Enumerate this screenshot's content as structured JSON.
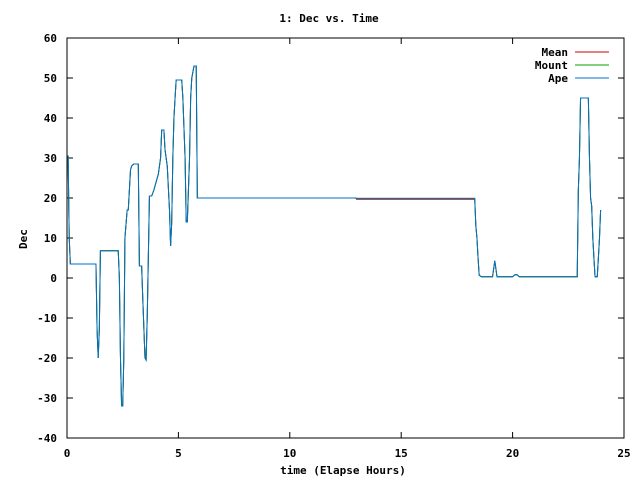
{
  "chart_data": {
    "type": "line",
    "title": "1: Dec vs. Time",
    "xlabel": "time (Elapse Hours)",
    "ylabel": "Dec",
    "xlim": [
      0,
      25
    ],
    "ylim": [
      -40,
      60
    ],
    "xticks": [
      "0",
      "5",
      "10",
      "15",
      "20",
      "25"
    ],
    "yticks": [
      "-40",
      "-30",
      "-20",
      "-10",
      "0",
      "10",
      "20",
      "30",
      "40",
      "50",
      "60"
    ],
    "grid": false,
    "legend_position": "top-right",
    "series": [
      {
        "name": "Mean",
        "color": "#cc0000",
        "points": [
          [
            0.0,
            30.5
          ],
          [
            0.05,
            30.5
          ],
          [
            0.1,
            10
          ],
          [
            0.15,
            3.5
          ],
          [
            1.2,
            3.5
          ],
          [
            1.3,
            3.5
          ],
          [
            1.35,
            -13
          ],
          [
            1.4,
            -20
          ],
          [
            1.45,
            -13
          ],
          [
            1.5,
            6.8
          ],
          [
            2.3,
            6.8
          ],
          [
            2.35,
            0
          ],
          [
            2.4,
            -20
          ],
          [
            2.45,
            -32
          ],
          [
            2.5,
            -32
          ],
          [
            2.55,
            -20
          ],
          [
            2.6,
            10
          ],
          [
            2.7,
            17
          ],
          [
            2.75,
            17
          ],
          [
            2.8,
            22
          ],
          [
            2.85,
            27
          ],
          [
            2.9,
            28
          ],
          [
            3.0,
            28.5
          ],
          [
            3.2,
            28.5
          ],
          [
            3.25,
            3
          ],
          [
            3.35,
            3
          ],
          [
            3.4,
            -5
          ],
          [
            3.5,
            -20
          ],
          [
            3.55,
            -20.5
          ],
          [
            3.6,
            -10
          ],
          [
            3.65,
            5
          ],
          [
            3.7,
            20.5
          ],
          [
            3.8,
            20.5
          ],
          [
            3.9,
            22
          ],
          [
            4.0,
            24
          ],
          [
            4.1,
            26
          ],
          [
            4.2,
            30
          ],
          [
            4.25,
            37
          ],
          [
            4.35,
            37
          ],
          [
            4.4,
            32
          ],
          [
            4.5,
            28
          ],
          [
            4.6,
            17
          ],
          [
            4.65,
            8
          ],
          [
            4.7,
            14
          ],
          [
            4.75,
            30
          ],
          [
            4.8,
            40
          ],
          [
            4.85,
            45
          ],
          [
            4.9,
            49.5
          ],
          [
            5.15,
            49.5
          ],
          [
            5.2,
            45
          ],
          [
            5.3,
            30
          ],
          [
            5.35,
            14
          ],
          [
            5.4,
            14
          ],
          [
            5.5,
            30
          ],
          [
            5.55,
            45
          ],
          [
            5.6,
            50
          ],
          [
            5.7,
            53
          ],
          [
            5.8,
            53
          ],
          [
            5.85,
            20
          ],
          [
            12.95,
            20
          ],
          [
            13.0,
            19.7
          ],
          [
            18.3,
            19.7
          ],
          [
            18.35,
            13
          ],
          [
            18.4,
            10
          ],
          [
            18.45,
            5
          ],
          [
            18.5,
            0.7
          ],
          [
            18.6,
            0.3
          ],
          [
            19.1,
            0.3
          ],
          [
            19.2,
            4.3
          ],
          [
            19.3,
            0.3
          ],
          [
            20.0,
            0.3
          ],
          [
            20.1,
            0.8
          ],
          [
            20.2,
            0.8
          ],
          [
            20.3,
            0.3
          ],
          [
            22.9,
            0.3
          ],
          [
            22.95,
            22
          ],
          [
            23.0,
            30
          ],
          [
            23.05,
            45
          ],
          [
            23.4,
            45
          ],
          [
            23.45,
            30
          ],
          [
            23.5,
            20
          ],
          [
            23.55,
            18
          ],
          [
            23.6,
            10
          ],
          [
            23.65,
            5
          ],
          [
            23.7,
            0.3
          ],
          [
            23.8,
            0.3
          ],
          [
            23.85,
            5
          ],
          [
            23.9,
            10
          ],
          [
            23.95,
            17
          ]
        ]
      },
      {
        "name": "Mount",
        "color": "#00a000",
        "points": [
          [
            0.0,
            30.5
          ],
          [
            0.05,
            30.5
          ],
          [
            0.1,
            10
          ],
          [
            0.15,
            3.5
          ],
          [
            1.2,
            3.5
          ],
          [
            1.3,
            3.5
          ],
          [
            1.35,
            -13
          ],
          [
            1.4,
            -20
          ],
          [
            1.45,
            -13
          ],
          [
            1.5,
            6.8
          ],
          [
            2.3,
            6.8
          ],
          [
            2.35,
            0
          ],
          [
            2.4,
            -20
          ],
          [
            2.45,
            -32
          ],
          [
            2.5,
            -32
          ],
          [
            2.55,
            -20
          ],
          [
            2.6,
            10
          ],
          [
            2.7,
            17
          ],
          [
            2.75,
            17
          ],
          [
            2.8,
            22
          ],
          [
            2.85,
            27
          ],
          [
            2.9,
            28
          ],
          [
            3.0,
            28.5
          ],
          [
            3.2,
            28.5
          ],
          [
            3.25,
            3
          ],
          [
            3.35,
            3
          ],
          [
            3.4,
            -5
          ],
          [
            3.5,
            -20
          ],
          [
            3.55,
            -20.5
          ],
          [
            3.6,
            -10
          ],
          [
            3.65,
            5
          ],
          [
            3.7,
            20.5
          ],
          [
            3.8,
            20.5
          ],
          [
            3.9,
            22
          ],
          [
            4.0,
            24
          ],
          [
            4.1,
            26
          ],
          [
            4.2,
            30
          ],
          [
            4.25,
            37
          ],
          [
            4.35,
            37
          ],
          [
            4.4,
            32
          ],
          [
            4.5,
            28
          ],
          [
            4.6,
            17
          ],
          [
            4.65,
            8
          ],
          [
            4.7,
            14
          ],
          [
            4.75,
            30
          ],
          [
            4.8,
            40
          ],
          [
            4.85,
            45
          ],
          [
            4.9,
            49.5
          ],
          [
            5.15,
            49.5
          ],
          [
            5.2,
            45
          ],
          [
            5.3,
            30
          ],
          [
            5.35,
            14
          ],
          [
            5.4,
            14
          ],
          [
            5.5,
            30
          ],
          [
            5.55,
            45
          ],
          [
            5.6,
            50
          ],
          [
            5.7,
            53
          ],
          [
            5.8,
            53
          ],
          [
            5.85,
            20
          ],
          [
            12.95,
            20
          ],
          [
            13.0,
            19.9
          ],
          [
            18.3,
            19.9
          ],
          [
            18.35,
            13
          ],
          [
            18.4,
            10
          ],
          [
            18.45,
            5
          ],
          [
            18.5,
            0.7
          ],
          [
            18.6,
            0.3
          ],
          [
            19.1,
            0.3
          ],
          [
            19.2,
            4.3
          ],
          [
            19.3,
            0.3
          ],
          [
            20.0,
            0.3
          ],
          [
            20.1,
            0.8
          ],
          [
            20.2,
            0.8
          ],
          [
            20.3,
            0.3
          ],
          [
            22.9,
            0.3
          ],
          [
            22.95,
            22
          ],
          [
            23.0,
            30
          ],
          [
            23.05,
            45
          ],
          [
            23.4,
            45
          ],
          [
            23.45,
            30
          ],
          [
            23.5,
            20
          ],
          [
            23.55,
            18
          ],
          [
            23.6,
            10
          ],
          [
            23.65,
            5
          ],
          [
            23.7,
            0.3
          ],
          [
            23.8,
            0.3
          ],
          [
            23.85,
            5
          ],
          [
            23.9,
            10
          ],
          [
            23.95,
            17
          ]
        ]
      },
      {
        "name": "Ape",
        "color": "#0070c8",
        "points": [
          [
            0.0,
            30.5
          ],
          [
            0.05,
            30.5
          ],
          [
            0.1,
            10
          ],
          [
            0.15,
            3.5
          ],
          [
            1.2,
            3.5
          ],
          [
            1.3,
            3.5
          ],
          [
            1.35,
            -13
          ],
          [
            1.4,
            -20
          ],
          [
            1.45,
            -13
          ],
          [
            1.5,
            6.8
          ],
          [
            2.3,
            6.8
          ],
          [
            2.35,
            0
          ],
          [
            2.4,
            -20
          ],
          [
            2.45,
            -32
          ],
          [
            2.5,
            -32
          ],
          [
            2.55,
            -20
          ],
          [
            2.6,
            10
          ],
          [
            2.7,
            17
          ],
          [
            2.75,
            17
          ],
          [
            2.8,
            22
          ],
          [
            2.85,
            27
          ],
          [
            2.9,
            28
          ],
          [
            3.0,
            28.5
          ],
          [
            3.2,
            28.5
          ],
          [
            3.25,
            3
          ],
          [
            3.35,
            3
          ],
          [
            3.4,
            -5
          ],
          [
            3.5,
            -20
          ],
          [
            3.55,
            -20.5
          ],
          [
            3.6,
            -10
          ],
          [
            3.65,
            5
          ],
          [
            3.7,
            20.5
          ],
          [
            3.8,
            20.5
          ],
          [
            3.9,
            22
          ],
          [
            4.0,
            24
          ],
          [
            4.1,
            26
          ],
          [
            4.2,
            30
          ],
          [
            4.25,
            37
          ],
          [
            4.35,
            37
          ],
          [
            4.4,
            32
          ],
          [
            4.5,
            28
          ],
          [
            4.6,
            17
          ],
          [
            4.65,
            8
          ],
          [
            4.7,
            14
          ],
          [
            4.75,
            30
          ],
          [
            4.8,
            40
          ],
          [
            4.85,
            45
          ],
          [
            4.9,
            49.5
          ],
          [
            5.15,
            49.5
          ],
          [
            5.2,
            45
          ],
          [
            5.3,
            30
          ],
          [
            5.35,
            14
          ],
          [
            5.4,
            14
          ],
          [
            5.5,
            30
          ],
          [
            5.55,
            45
          ],
          [
            5.6,
            50
          ],
          [
            5.7,
            53
          ],
          [
            5.8,
            53
          ],
          [
            5.85,
            20
          ],
          [
            12.95,
            20
          ],
          [
            13.0,
            19.9
          ],
          [
            18.3,
            19.9
          ],
          [
            18.35,
            13
          ],
          [
            18.4,
            10
          ],
          [
            18.45,
            5
          ],
          [
            18.5,
            0.7
          ],
          [
            18.6,
            0.3
          ],
          [
            19.1,
            0.3
          ],
          [
            19.2,
            4.3
          ],
          [
            19.3,
            0.3
          ],
          [
            20.0,
            0.3
          ],
          [
            20.1,
            0.8
          ],
          [
            20.2,
            0.8
          ],
          [
            20.3,
            0.3
          ],
          [
            22.9,
            0.3
          ],
          [
            22.95,
            22
          ],
          [
            23.0,
            30
          ],
          [
            23.05,
            45
          ],
          [
            23.4,
            45
          ],
          [
            23.45,
            30
          ],
          [
            23.5,
            20
          ],
          [
            23.55,
            18
          ],
          [
            23.6,
            10
          ],
          [
            23.65,
            5
          ],
          [
            23.7,
            0.3
          ],
          [
            23.8,
            0.3
          ],
          [
            23.85,
            5
          ],
          [
            23.9,
            10
          ],
          [
            23.95,
            17
          ]
        ]
      }
    ]
  }
}
